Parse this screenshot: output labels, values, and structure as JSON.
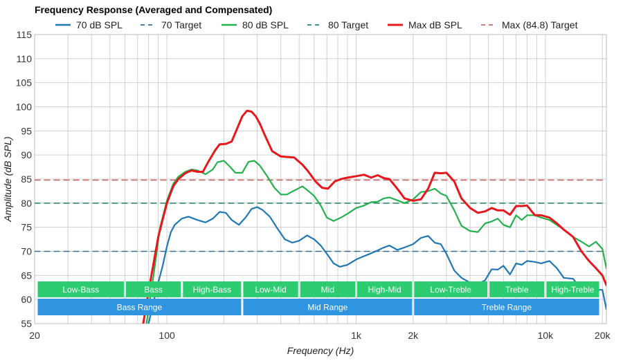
{
  "chart_data": {
    "type": "line",
    "title": "Frequency Response (Averaged and Compensated)",
    "xlabel": "Frequency (Hz)",
    "ylabel": "Amplitude (dB SPL)",
    "x_scale": "log",
    "xlim": [
      20,
      21000
    ],
    "ylim": [
      55,
      115
    ],
    "x_ticks": [
      {
        "value": 20,
        "label": "20"
      },
      {
        "value": 100,
        "label": "100"
      },
      {
        "value": 1000,
        "label": "1k"
      },
      {
        "value": 2000,
        "label": "2k"
      },
      {
        "value": 10000,
        "label": "10k"
      },
      {
        "value": 20000,
        "label": "20k"
      }
    ],
    "y_ticks": [
      {
        "value": 55,
        "label": "55"
      },
      {
        "value": 60,
        "label": "60"
      },
      {
        "value": 65,
        "label": "65"
      },
      {
        "value": 70,
        "label": "70"
      },
      {
        "value": 75,
        "label": "75"
      },
      {
        "value": 80,
        "label": "80"
      },
      {
        "value": 85,
        "label": "85"
      },
      {
        "value": 90,
        "label": "90"
      },
      {
        "value": 95,
        "label": "95"
      },
      {
        "value": 100,
        "label": "100"
      },
      {
        "value": 105,
        "label": "105"
      },
      {
        "value": 110,
        "label": "110"
      },
      {
        "value": 115,
        "label": "115"
      }
    ],
    "grid": true,
    "legend_position": "top",
    "series": [
      {
        "name": "70 dB SPL",
        "color": "#1f77b4",
        "style": "solid",
        "x": [
          80,
          88,
          95,
          100,
          105,
          110,
          120,
          130,
          145,
          160,
          175,
          190,
          205,
          220,
          240,
          260,
          280,
          300,
          320,
          350,
          380,
          420,
          460,
          500,
          550,
          600,
          650,
          700,
          760,
          820,
          900,
          1000,
          1100,
          1200,
          1300,
          1400,
          1500,
          1650,
          1800,
          2000,
          2200,
          2400,
          2600,
          2800,
          3000,
          3300,
          3600,
          4000,
          4400,
          4800,
          5200,
          5600,
          6000,
          6500,
          7000,
          7500,
          8000,
          8800,
          9500,
          10500,
          11500,
          12500,
          14000,
          15500,
          17000,
          18500,
          20000,
          21000
        ],
        "y": [
          55,
          62,
          67,
          71,
          74,
          75.5,
          76.8,
          77.2,
          76.5,
          76,
          76.8,
          78.2,
          78,
          76.5,
          75.5,
          77,
          78.8,
          79.2,
          78.6,
          77.2,
          75,
          72.5,
          71.8,
          72.2,
          73.3,
          72.5,
          71.2,
          69.5,
          67.5,
          66.8,
          67.2,
          68.3,
          69,
          69.6,
          70.2,
          70.8,
          71.2,
          70.3,
          70.8,
          71.5,
          72.8,
          73.2,
          71.8,
          71.5,
          69.5,
          66,
          64.5,
          63.5,
          63.2,
          64,
          66.3,
          66.2,
          67,
          65.2,
          67.5,
          67.2,
          68,
          67.8,
          67.5,
          68,
          66.5,
          64.5,
          64.3,
          62,
          62.5,
          62,
          62,
          58
        ]
      },
      {
        "name": "70 Target",
        "color": "#3a6f8f",
        "style": "dashed",
        "x": [
          20,
          21000
        ],
        "y": [
          70,
          70
        ]
      },
      {
        "name": "80 dB SPL",
        "color": "#22b14c",
        "style": "solid",
        "x": [
          78,
          85,
          92,
          100,
          108,
          115,
          125,
          135,
          145,
          160,
          175,
          185,
          200,
          215,
          230,
          250,
          270,
          290,
          310,
          340,
          370,
          400,
          430,
          470,
          520,
          560,
          600,
          650,
          700,
          760,
          830,
          900,
          1000,
          1100,
          1200,
          1300,
          1400,
          1500,
          1650,
          1800,
          2000,
          2200,
          2400,
          2600,
          2800,
          3000,
          3300,
          3600,
          4000,
          4400,
          4800,
          5200,
          5600,
          6000,
          6500,
          7000,
          7500,
          8000,
          8800,
          9500,
          10500,
          11500,
          12500,
          14000,
          15500,
          17000,
          18500,
          20000,
          21000
        ],
        "y": [
          55,
          65,
          75,
          80.5,
          84,
          85.5,
          86.5,
          87,
          86.8,
          86,
          87,
          88.5,
          88.8,
          87.6,
          86.3,
          86.3,
          88.6,
          88.8,
          87.8,
          85.5,
          83.2,
          81.8,
          81.8,
          82.6,
          83.5,
          82.5,
          81.5,
          79.5,
          77,
          76.3,
          77,
          77.8,
          79,
          79.5,
          80.2,
          80.3,
          81,
          81.2,
          80.6,
          80,
          80.8,
          82.3,
          82.5,
          83,
          82,
          81.5,
          78.5,
          75.3,
          74.2,
          74,
          75.8,
          76.2,
          76.8,
          75.5,
          75,
          77.5,
          76.5,
          77.5,
          77.5,
          77,
          76.5,
          75.5,
          74.5,
          73,
          72,
          71,
          72,
          70.5,
          66.5
        ]
      },
      {
        "name": "80 Target",
        "color": "#2e8b6a",
        "style": "dashed",
        "x": [
          20,
          21000
        ],
        "y": [
          80,
          80
        ]
      },
      {
        "name": "Max dB SPL",
        "color": "#e8171b",
        "style": "solid",
        "x": [
          75,
          82,
          90,
          100,
          108,
          115,
          125,
          135,
          145,
          155,
          165,
          180,
          190,
          205,
          220,
          235,
          250,
          265,
          280,
          295,
          310,
          330,
          360,
          400,
          430,
          470,
          520,
          560,
          610,
          660,
          710,
          770,
          830,
          900,
          1000,
          1100,
          1200,
          1300,
          1400,
          1500,
          1650,
          1800,
          2000,
          2200,
          2400,
          2600,
          2800,
          3000,
          3300,
          3600,
          4000,
          4400,
          4800,
          5200,
          5600,
          6000,
          6500,
          7000,
          7500,
          8000,
          8800,
          9500,
          10500,
          11500,
          12500,
          14000,
          15500,
          17000,
          18500,
          20000,
          21000
        ],
        "y": [
          55,
          64,
          73,
          80,
          83.5,
          85,
          86.2,
          86.8,
          86.5,
          86.5,
          88.5,
          91,
          92.2,
          92.3,
          92.8,
          95.5,
          98,
          99.2,
          99,
          98,
          96.5,
          94,
          90.8,
          89.7,
          89.6,
          89.5,
          88,
          86.5,
          84.5,
          83.2,
          83,
          84.5,
          85,
          85.3,
          85.6,
          85.9,
          85.3,
          85.8,
          85.2,
          85,
          83,
          81,
          80.5,
          80.8,
          83,
          86.3,
          86.2,
          86.3,
          84.5,
          81,
          79,
          78,
          78.3,
          79,
          78.5,
          78.5,
          77.6,
          79.4,
          79.4,
          79.5,
          77.5,
          77.5,
          77,
          75.8,
          74.5,
          73,
          70,
          68,
          66.5,
          65,
          63
        ]
      },
      {
        "name": "Max (84.8) Target",
        "color": "#c96b6b",
        "style": "dashed",
        "x": [
          20,
          21000
        ],
        "y": [
          84.8,
          84.8
        ]
      }
    ],
    "range_bands": [
      {
        "row": 1,
        "label": "Low-Bass",
        "from": 20,
        "to": 60
      },
      {
        "row": 1,
        "label": "Bass",
        "from": 60,
        "to": 120
      },
      {
        "row": 1,
        "label": "High-Bass",
        "from": 120,
        "to": 250
      },
      {
        "row": 1,
        "label": "Low-Mid",
        "from": 250,
        "to": 500
      },
      {
        "row": 1,
        "label": "Mid",
        "from": 500,
        "to": 1000
      },
      {
        "row": 1,
        "label": "High-Mid",
        "from": 1000,
        "to": 2000
      },
      {
        "row": 1,
        "label": "Low-Treble",
        "from": 2000,
        "to": 5000
      },
      {
        "row": 1,
        "label": "Treble",
        "from": 5000,
        "to": 10000
      },
      {
        "row": 1,
        "label": "High-Treble",
        "from": 10000,
        "to": 20000
      },
      {
        "row": 2,
        "label": "Bass Range",
        "from": 20,
        "to": 250
      },
      {
        "row": 2,
        "label": "Mid Range",
        "from": 250,
        "to": 2000
      },
      {
        "row": 2,
        "label": "Treble Range",
        "from": 2000,
        "to": 20000
      }
    ],
    "band_colors": {
      "row1": "#2ecc71",
      "row2": "#2f95e0"
    }
  }
}
